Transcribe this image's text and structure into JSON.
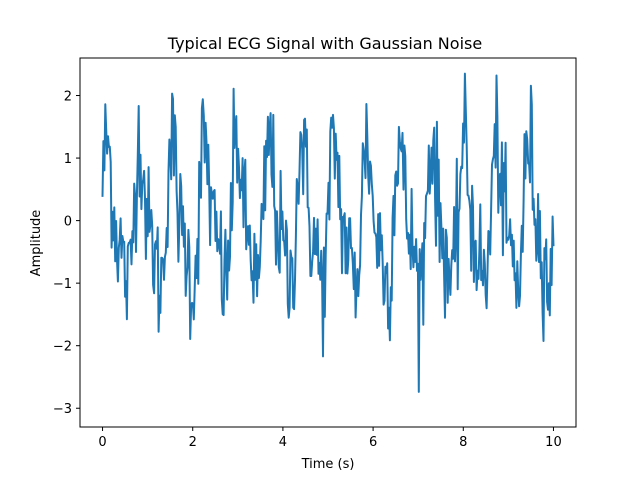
{
  "chart_data": {
    "type": "line",
    "title": "Typical ECG Signal with Gaussian Noise",
    "xlabel": "Time (s)",
    "ylabel": "Amplitude",
    "xlim": [
      -0.5,
      10.5
    ],
    "ylim": [
      -3.3,
      2.6
    ],
    "xticks": [
      0,
      2,
      4,
      6,
      8,
      10
    ],
    "yticks": [
      -3,
      -2,
      -1,
      0,
      1,
      2
    ],
    "xtick_labels": [
      "0",
      "2",
      "4",
      "6",
      "8",
      "10"
    ],
    "ytick_labels": [
      "−3",
      "−2",
      "−1",
      "0",
      "1",
      "2"
    ],
    "grid": false,
    "series": [
      {
        "name": "ECG",
        "color": "#1f77b4",
        "x_start": 0,
        "x_end": 10,
        "num_points": 500,
        "beat_period_s": 0.72,
        "approx_min": -3.0,
        "approx_max": 2.35,
        "noise_std": 0.5
      }
    ]
  }
}
